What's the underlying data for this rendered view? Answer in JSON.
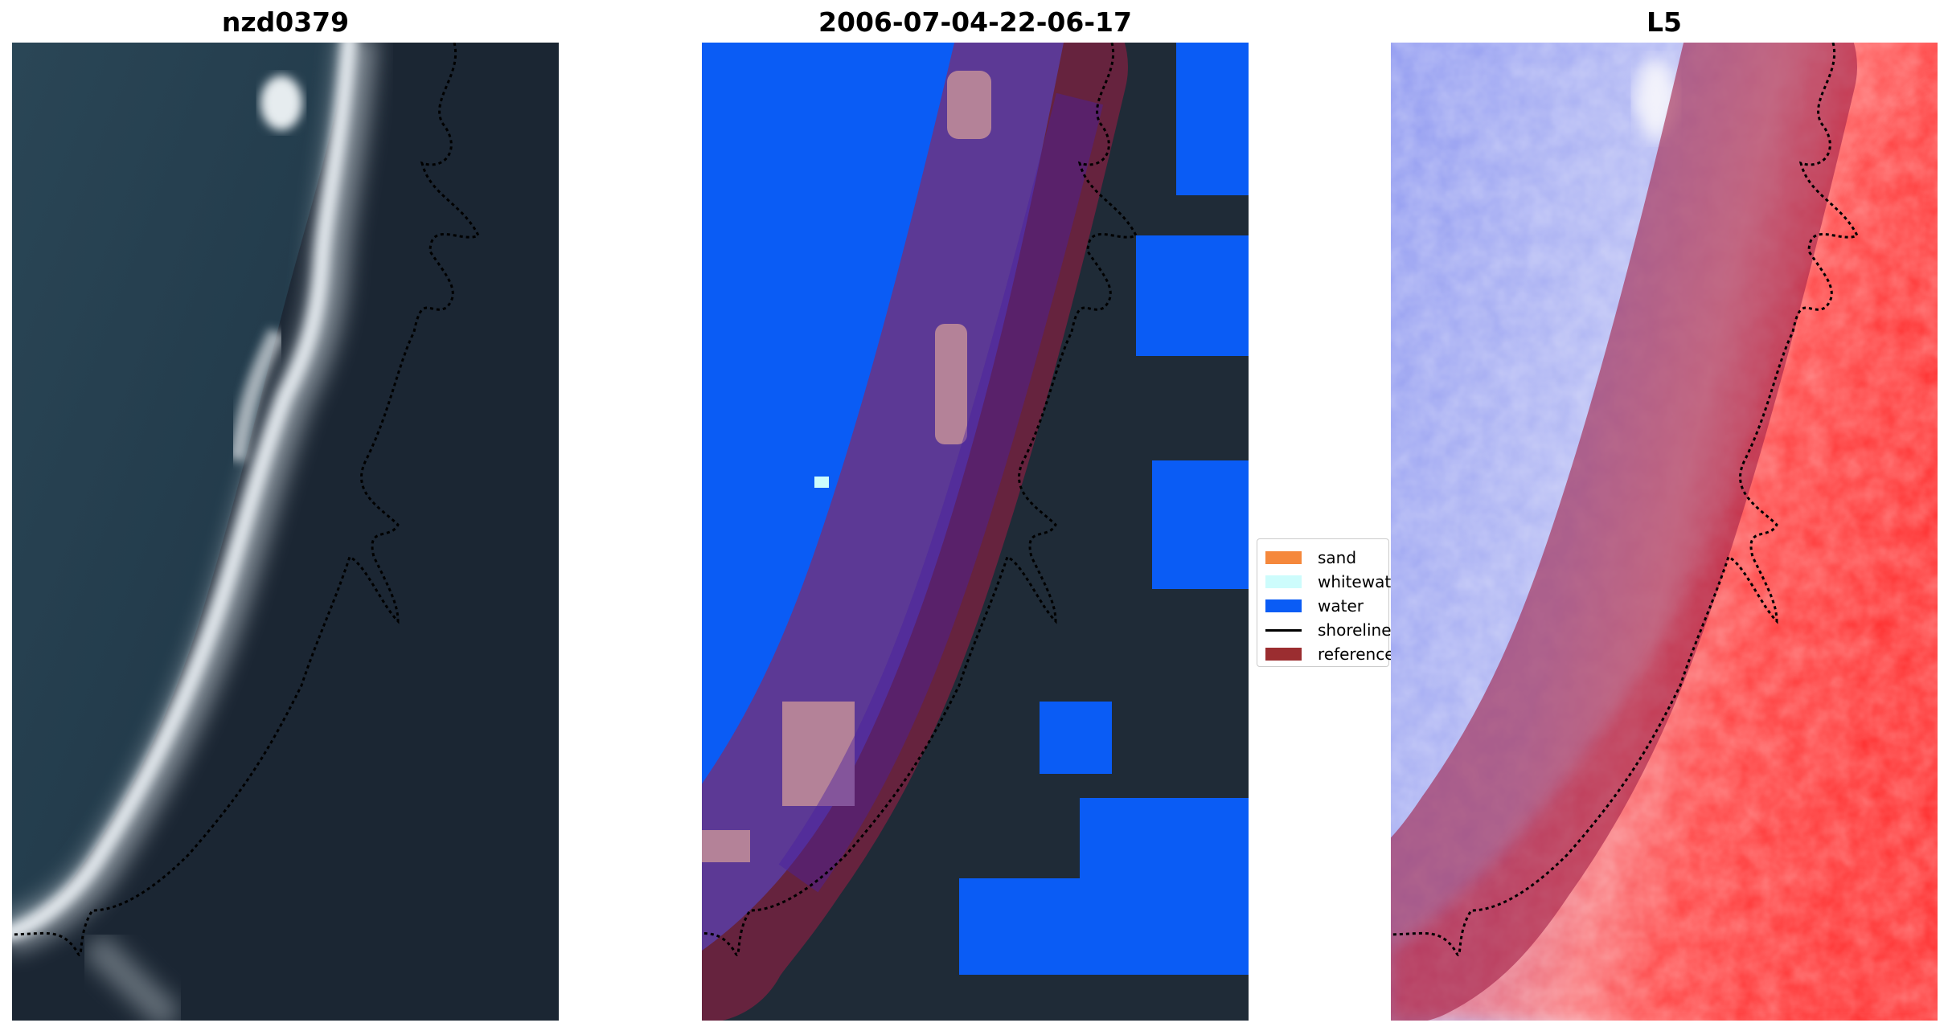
{
  "panels": [
    {
      "title": "nzd0379",
      "content": "satellite-rgb"
    },
    {
      "title": "2006-07-04-22-06-17",
      "content": "classification"
    },
    {
      "title": "L5",
      "content": "index-map"
    }
  ],
  "legend": {
    "items": [
      {
        "label": "sand",
        "color": "#f5883c",
        "kind": "patch"
      },
      {
        "label": "whitewater",
        "color": "#cdfcfc",
        "kind": "patch"
      },
      {
        "label": "water",
        "color": "#0a5cf5",
        "kind": "patch"
      },
      {
        "label": "shoreline",
        "color": "#000000",
        "kind": "line"
      },
      {
        "label": "reference",
        "color": "#9b2d30",
        "kind": "patch"
      }
    ]
  },
  "colors": {
    "ocean": "#1f3a4a",
    "land": "#1a2633",
    "surf": "#cfd6dc",
    "water_class": "#0a5cf5",
    "whitewater_class": "#cdfcfc",
    "reference_buffer": "#a01e46",
    "index_low": "#3246e6",
    "index_high": "#ff2020"
  }
}
